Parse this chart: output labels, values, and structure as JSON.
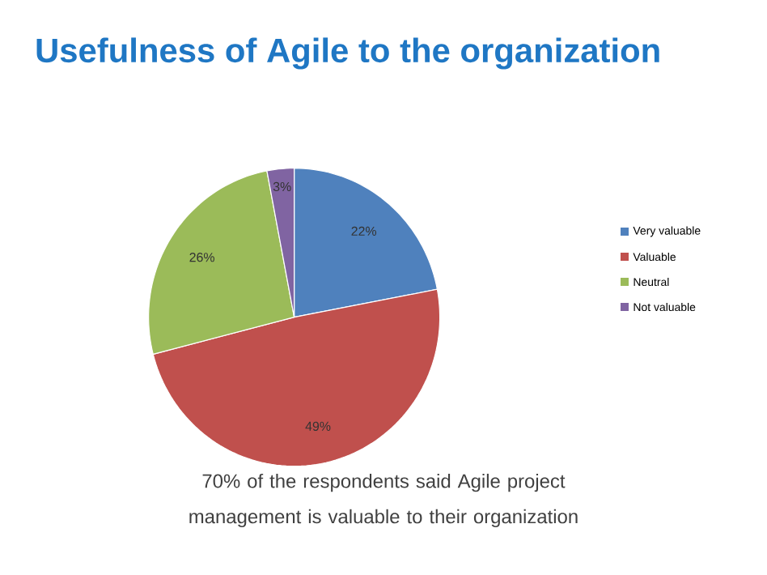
{
  "chart_data": {
    "type": "pie",
    "title": "Usefulness of Agile to the organization",
    "categories": [
      "Very valuable",
      "Valuable",
      "Neutral",
      "Not valuable"
    ],
    "values": [
      22,
      49,
      26,
      3
    ],
    "colors": [
      "#4f81bd",
      "#c0504d",
      "#9bbb59",
      "#8064a2"
    ],
    "value_labels": [
      "22%",
      "49%",
      "26%",
      "3%"
    ],
    "legend": "right",
    "annotations": [
      "70% of the respondents said Agile project management is valuable to their organization"
    ]
  }
}
